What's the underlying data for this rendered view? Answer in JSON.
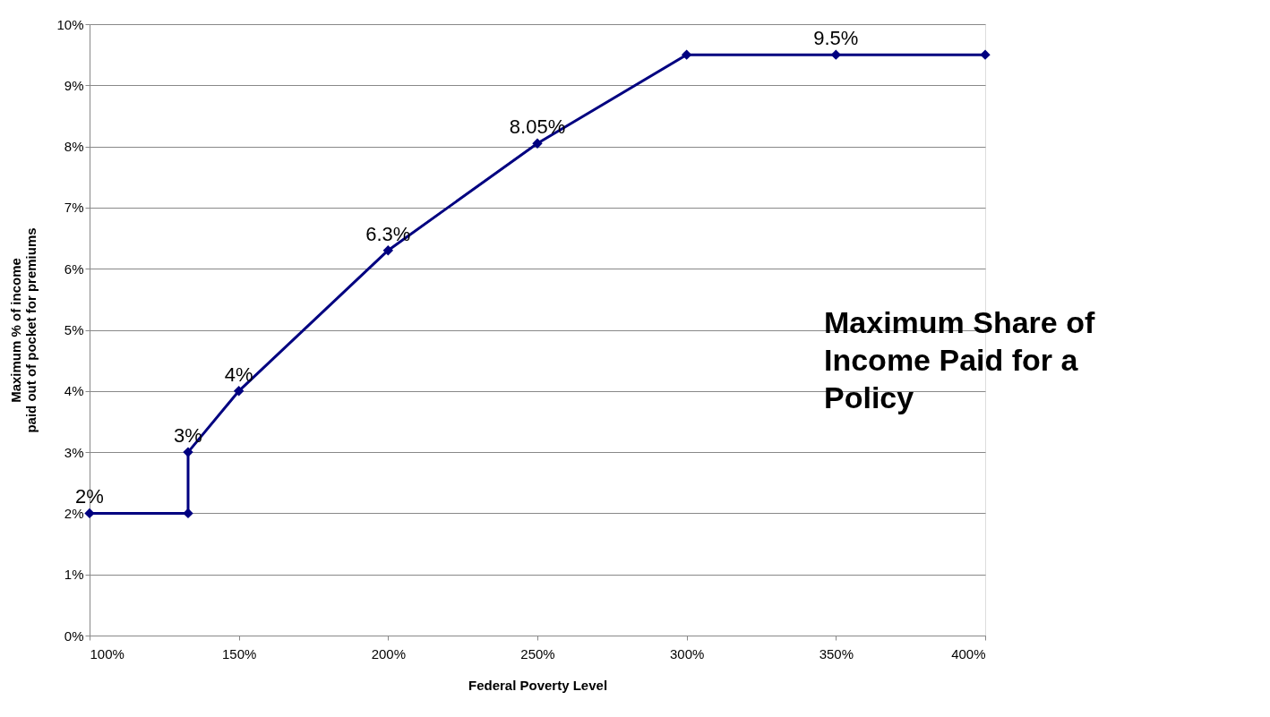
{
  "chart_data": {
    "type": "line",
    "title": "Maximum Share of Income Paid for a Policy",
    "xlabel": "Federal Poverty Level",
    "ylabel": "Maximum % of income\npaid out of pocket for premiums",
    "x": [
      100,
      133,
      133,
      150,
      200,
      250,
      300,
      350,
      400
    ],
    "series": [
      {
        "color": "#000080",
        "values": [
          2,
          2,
          3,
          4,
          6.3,
          8.05,
          9.5,
          9.5,
          9.5
        ],
        "value_labels": [
          "2%",
          null,
          "3%",
          "4%",
          "6.3%",
          "8.05%",
          null,
          "9.5%",
          null
        ]
      }
    ],
    "xlim": [
      100,
      400
    ],
    "xticks": [
      {
        "value": 100,
        "label": "100%"
      },
      {
        "value": 150,
        "label": "150%"
      },
      {
        "value": 200,
        "label": "200%"
      },
      {
        "value": 250,
        "label": "250%"
      },
      {
        "value": 300,
        "label": "300%"
      },
      {
        "value": 350,
        "label": "350%"
      },
      {
        "value": 400,
        "label": "400%"
      }
    ],
    "ylim": [
      0,
      10
    ],
    "yticks": [
      {
        "value": 0,
        "label": "0%"
      },
      {
        "value": 1,
        "label": "1%"
      },
      {
        "value": 2,
        "label": "2%"
      },
      {
        "value": 3,
        "label": "3%"
      },
      {
        "value": 4,
        "label": "4%"
      },
      {
        "value": 5,
        "label": "5%"
      },
      {
        "value": 6,
        "label": "6%"
      },
      {
        "value": 7,
        "label": "7%"
      },
      {
        "value": 8,
        "label": "8%"
      },
      {
        "value": 9,
        "label": "9%"
      },
      {
        "value": 10,
        "label": "10%"
      }
    ],
    "grid": "y",
    "marker": "diamond",
    "line_style": "solid"
  }
}
